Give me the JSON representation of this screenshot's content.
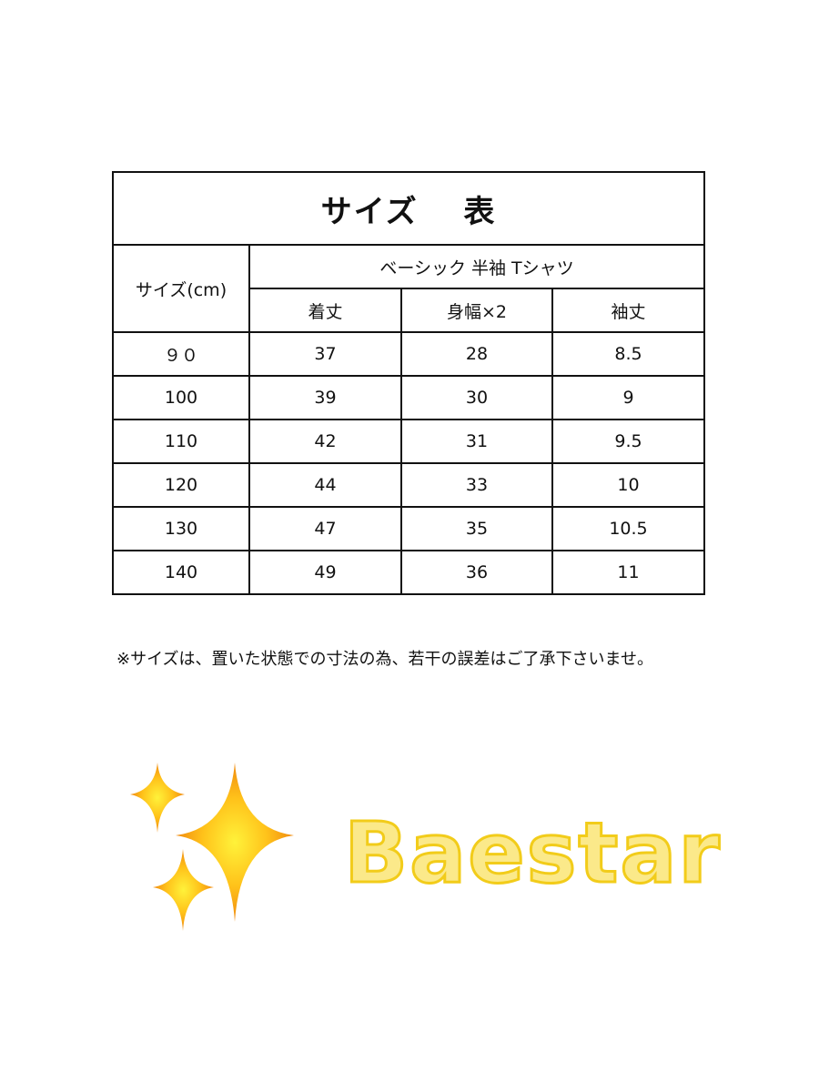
{
  "table": {
    "title": "サイズ　 表",
    "size_header": "サイズ(cm)",
    "product": "ベーシック 半袖 Tシャツ",
    "columns": [
      "着丈",
      "身幅×2",
      "袖丈"
    ],
    "rows": [
      [
        "９０",
        "37",
        "28",
        "8.5"
      ],
      [
        "100",
        "39",
        "30",
        "9"
      ],
      [
        "110",
        "42",
        "31",
        "9.5"
      ],
      [
        "120",
        "44",
        "33",
        "10"
      ],
      [
        "130",
        "47",
        "35",
        "10.5"
      ],
      [
        "140",
        "49",
        "36",
        "11"
      ]
    ]
  },
  "note": "※サイズは、置いた状態での寸法の為、若干の誤差はご了承下さいませ。",
  "logo": {
    "text": "Baestar",
    "color": "#f2cc1a"
  },
  "icons": [
    "sparkles-icon"
  ]
}
